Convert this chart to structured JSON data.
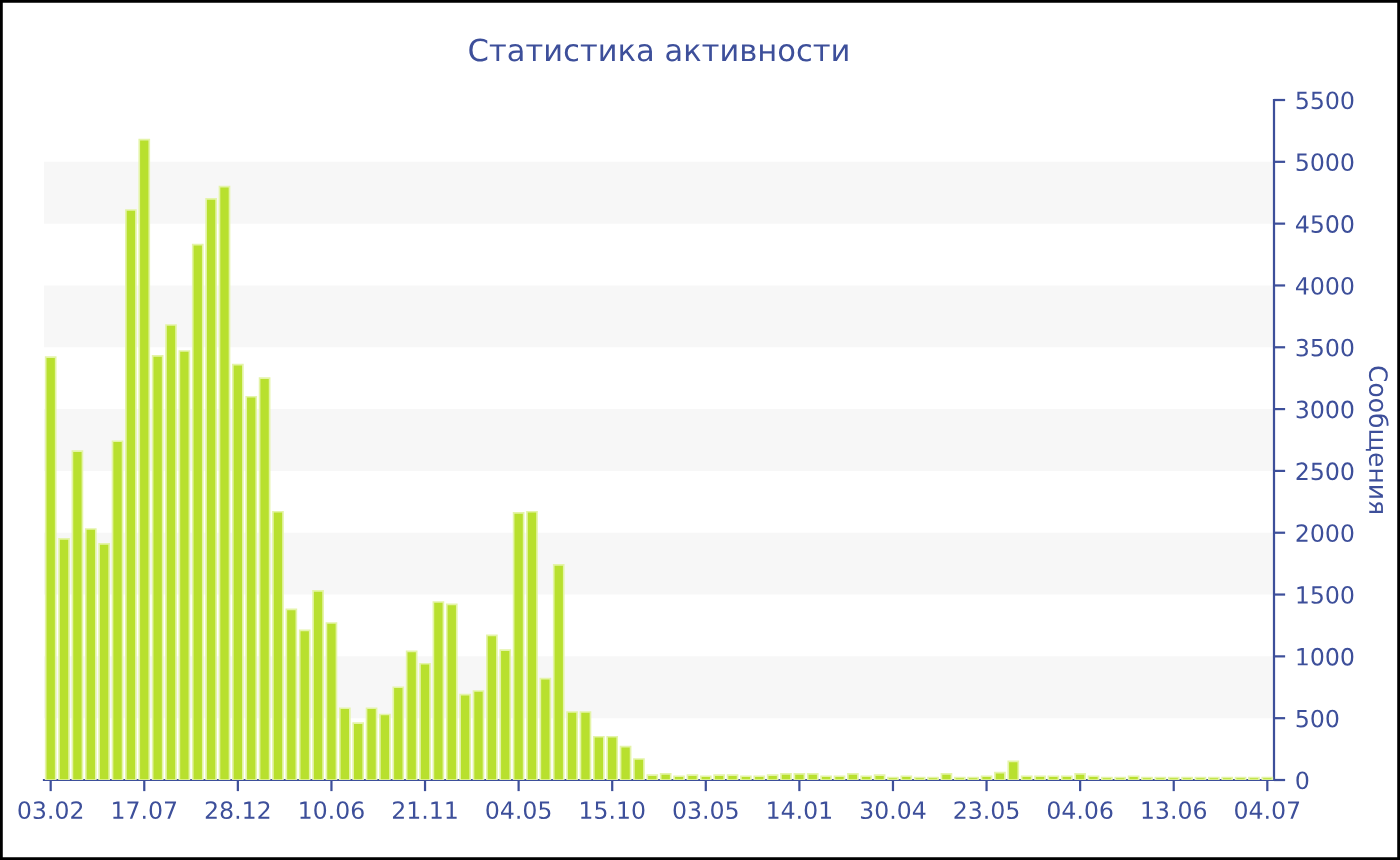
{
  "chart_data": {
    "type": "bar",
    "title": "Статистика активности",
    "ylabel": "Сообщения",
    "categories": [
      "03.02",
      null,
      null,
      null,
      null,
      null,
      null,
      "17.07",
      null,
      null,
      null,
      null,
      null,
      null,
      "28.12",
      null,
      null,
      null,
      null,
      null,
      null,
      "10.06",
      null,
      null,
      null,
      null,
      null,
      null,
      "21.11",
      null,
      null,
      null,
      null,
      null,
      null,
      "04.05",
      null,
      null,
      null,
      null,
      null,
      null,
      "15.10",
      null,
      null,
      null,
      null,
      null,
      null,
      "03.05",
      null,
      null,
      null,
      null,
      null,
      null,
      "14.01",
      null,
      null,
      null,
      null,
      null,
      null,
      "30.04",
      null,
      null,
      null,
      null,
      null,
      null,
      "23.05",
      null,
      null,
      null,
      null,
      null,
      null,
      "04.06",
      null,
      null,
      null,
      null,
      null,
      null,
      "13.06",
      null,
      null,
      null,
      null,
      null,
      null,
      "04.07"
    ],
    "values": [
      3420,
      1950,
      2660,
      2030,
      1910,
      2740,
      4610,
      5180,
      3430,
      3680,
      3470,
      4330,
      4700,
      4800,
      3360,
      3100,
      3250,
      2170,
      1380,
      1210,
      1530,
      1270,
      580,
      460,
      580,
      530,
      750,
      1040,
      940,
      1440,
      1420,
      690,
      720,
      1170,
      1050,
      2160,
      2170,
      820,
      1740,
      550,
      550,
      350,
      350,
      270,
      170,
      40,
      50,
      30,
      40,
      30,
      40,
      40,
      30,
      30,
      40,
      50,
      50,
      50,
      30,
      30,
      50,
      30,
      40,
      20,
      30,
      20,
      20,
      50,
      20,
      20,
      30,
      60,
      150,
      30,
      30,
      30,
      30,
      50,
      30,
      20,
      20,
      30,
      20,
      20,
      20,
      20,
      20,
      20,
      20,
      20,
      20,
      20
    ],
    "color": "#b8e02e",
    "ylim": [
      0,
      5500
    ],
    "yticks": [
      0,
      500,
      1000,
      1500,
      2000,
      2500,
      3000,
      3500,
      4000,
      4500,
      5000,
      5500
    ],
    "bands": [
      {
        "axis": "y",
        "from": 500,
        "to": 1000,
        "color": "#f7f7f7"
      },
      {
        "axis": "y",
        "from": 1500,
        "to": 2000,
        "color": "#f7f7f7"
      },
      {
        "axis": "y",
        "from": 2500,
        "to": 3000,
        "color": "#f7f7f7"
      },
      {
        "axis": "y",
        "from": 3500,
        "to": 4000,
        "color": "#f7f7f7"
      },
      {
        "axis": "y",
        "from": 4500,
        "to": 5000,
        "color": "#f7f7f7"
      }
    ]
  }
}
